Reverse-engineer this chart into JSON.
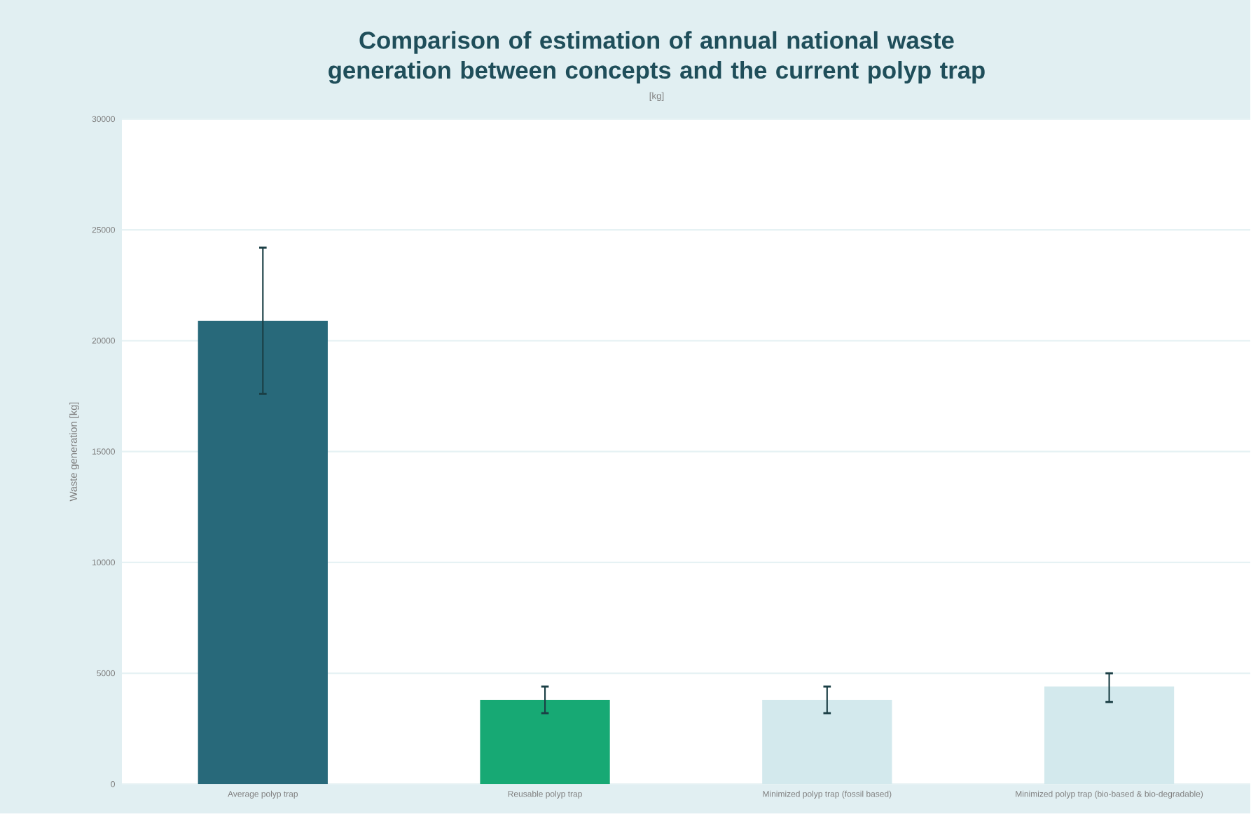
{
  "chart_data": {
    "type": "bar",
    "title": "Comparison of estimation of annual national waste generation between concepts and the current polyp trap",
    "subtitle": "[kg]",
    "ylabel": "Waste generation [kg]",
    "categories": [
      "Average polyp trap",
      "Reusable polyp trap",
      "Minimized polyp trap (fossil based)",
      "Minimized polyp trap (bio-based & bio-degradable)"
    ],
    "values": [
      20900,
      3800,
      3800,
      4400
    ],
    "errors": [
      [
        17600,
        24200
      ],
      [
        3200,
        4400
      ],
      [
        3200,
        4400
      ],
      [
        3700,
        5000
      ]
    ],
    "colors": [
      "#28697a",
      "#17a974",
      "#d3e9ed",
      "#d3e9ed"
    ],
    "ylim": [
      0,
      30000
    ],
    "yticks": [
      0,
      5000,
      10000,
      15000,
      20000,
      25000,
      30000
    ],
    "grid": "y",
    "legend": false
  }
}
